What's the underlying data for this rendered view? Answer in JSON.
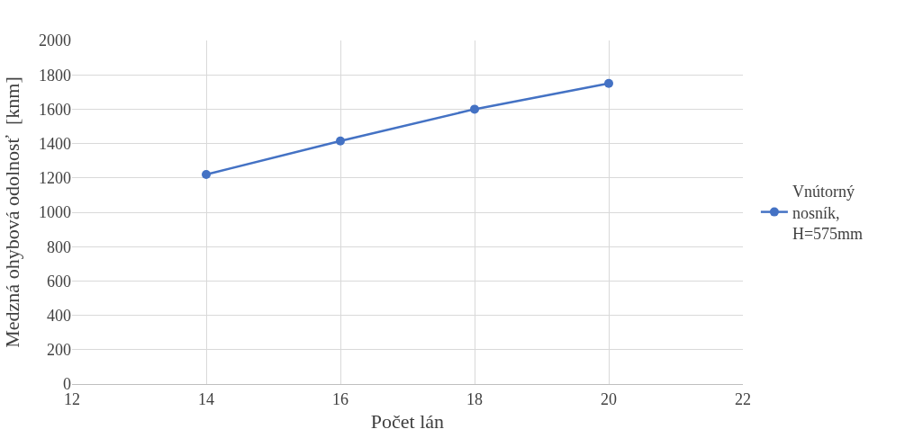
{
  "chart_data": {
    "type": "line",
    "xlabel": "Počet lán",
    "ylabel": "Medzná ohybová odolnosť  [knm]",
    "x": [
      14,
      16,
      18,
      20
    ],
    "series": [
      {
        "name": "Vnútorný nosník, H=575mm",
        "color": "#4472c4",
        "values": [
          1220,
          1415,
          1600,
          1750
        ]
      }
    ],
    "xlim": [
      12,
      22
    ],
    "xticks": [
      12,
      14,
      16,
      18,
      20,
      22
    ],
    "ylim": [
      0,
      2000
    ],
    "yticks": [
      0,
      200,
      400,
      600,
      800,
      1000,
      1200,
      1400,
      1600,
      1800,
      2000
    ],
    "grid": true,
    "legend": "right",
    "marker": "circle",
    "line_style": "solid"
  }
}
